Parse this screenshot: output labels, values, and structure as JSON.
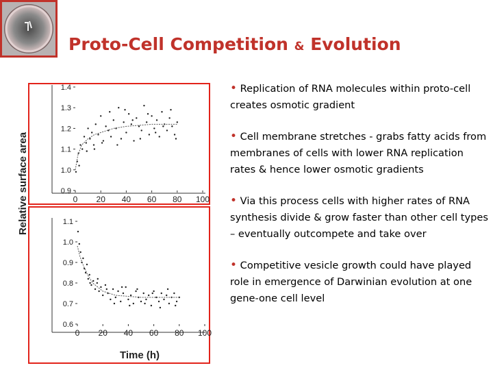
{
  "title": {
    "main": "Proto-Cell Competition",
    "amp": "&",
    "tail": "Evolution"
  },
  "logo": {
    "icon": "protocell-photo-icon"
  },
  "bullets": [
    {
      "text": "Replication of RNA molecules within proto-cell creates osmotic gradient"
    },
    {
      "text": "Cell membrane stretches - grabs fatty acids from membranes of cells with lower RNA replication rates & hence lower osmotic gradients"
    },
    {
      "text": "Via this process cells with higher rates of RNA synthesis divide & grow faster than other cell types – eventually outcompete and take over"
    },
    {
      "text": "Competitive vesicle growth could have played role in emergence of Darwinian evolution at one gene-one cell level"
    }
  ],
  "colors": {
    "accent": "#c0322a",
    "frame": "#e2231a"
  },
  "chart_data": [
    {
      "type": "scatter",
      "ylabel": "Relative surface area",
      "xlabel": "",
      "xlim": [
        0,
        100
      ],
      "ylim": [
        0.9,
        1.4
      ],
      "xticks": [
        0,
        20,
        40,
        60,
        80,
        100
      ],
      "yticks": [
        1.4,
        1.3,
        1.2,
        1.1,
        1.0,
        0.9
      ],
      "fit": {
        "x": [
          0,
          2,
          5,
          10,
          15,
          20,
          30,
          40,
          50,
          60,
          70,
          80
        ],
        "y": [
          1.0,
          1.07,
          1.12,
          1.15,
          1.17,
          1.18,
          1.2,
          1.21,
          1.215,
          1.22,
          1.22,
          1.22
        ]
      },
      "points": {
        "x": [
          0.5,
          1.5,
          2.5,
          4,
          5.5,
          7,
          8.5,
          10,
          11.5,
          13,
          14.5,
          16,
          18,
          20,
          22,
          24,
          26,
          28,
          30,
          32,
          34,
          36,
          38,
          40,
          42,
          44,
          46,
          48,
          50,
          52,
          54,
          56,
          58,
          60,
          62,
          64,
          66,
          68,
          70,
          72,
          74,
          76,
          78,
          80,
          3,
          9,
          15,
          21,
          27,
          33,
          39,
          45,
          51,
          57,
          63,
          69,
          75,
          79
        ],
        "y": [
          0.99,
          1.04,
          1.08,
          1.12,
          1.1,
          1.16,
          1.13,
          1.2,
          1.15,
          1.18,
          1.12,
          1.22,
          1.17,
          1.26,
          1.14,
          1.21,
          1.19,
          1.16,
          1.24,
          1.2,
          1.3,
          1.15,
          1.23,
          1.18,
          1.27,
          1.22,
          1.14,
          1.25,
          1.21,
          1.19,
          1.31,
          1.23,
          1.17,
          1.26,
          1.2,
          1.24,
          1.16,
          1.28,
          1.22,
          1.19,
          1.25,
          1.21,
          1.17,
          1.23,
          1.02,
          1.09,
          1.1,
          1.13,
          1.28,
          1.12,
          1.29,
          1.24,
          1.15,
          1.27,
          1.18,
          1.21,
          1.29,
          1.15
        ]
      }
    },
    {
      "type": "scatter",
      "ylabel": "",
      "xlabel": "Time (h)",
      "xlim": [
        0,
        100
      ],
      "ylim": [
        0.6,
        1.1
      ],
      "xticks": [
        0,
        20,
        40,
        60,
        80,
        100
      ],
      "yticks": [
        1.1,
        1.0,
        0.9,
        0.8,
        0.7,
        0.6
      ],
      "fit": {
        "x": [
          0,
          2,
          5,
          8,
          12,
          16,
          20,
          25,
          30,
          40,
          50,
          60,
          70,
          80
        ],
        "y": [
          0.98,
          0.93,
          0.88,
          0.84,
          0.8,
          0.78,
          0.76,
          0.75,
          0.74,
          0.735,
          0.73,
          0.73,
          0.73,
          0.73
        ]
      },
      "points": {
        "x": [
          0.5,
          1.5,
          2.5,
          3.5,
          4.5,
          5.5,
          6.5,
          7.5,
          8.5,
          9.5,
          11,
          12.5,
          14,
          15.5,
          17,
          18.5,
          20,
          22,
          24,
          26,
          28,
          30,
          32,
          34,
          36,
          38,
          40,
          42,
          44,
          46,
          48,
          50,
          52,
          54,
          56,
          58,
          60,
          62,
          64,
          66,
          68,
          70,
          72,
          74,
          76,
          78,
          80,
          10,
          16,
          23,
          29,
          35,
          41,
          47,
          53,
          59,
          65,
          71,
          77
        ],
        "y": [
          1.05,
          0.99,
          0.95,
          0.9,
          0.92,
          0.87,
          0.85,
          0.89,
          0.82,
          0.84,
          0.79,
          0.81,
          0.77,
          0.8,
          0.76,
          0.78,
          0.74,
          0.79,
          0.75,
          0.72,
          0.77,
          0.73,
          0.76,
          0.71,
          0.75,
          0.78,
          0.72,
          0.74,
          0.7,
          0.76,
          0.73,
          0.71,
          0.75,
          0.72,
          0.74,
          0.69,
          0.76,
          0.73,
          0.71,
          0.75,
          0.72,
          0.74,
          0.7,
          0.73,
          0.75,
          0.71,
          0.73,
          0.8,
          0.82,
          0.77,
          0.7,
          0.78,
          0.69,
          0.77,
          0.7,
          0.75,
          0.68,
          0.77,
          0.69
        ]
      }
    }
  ]
}
